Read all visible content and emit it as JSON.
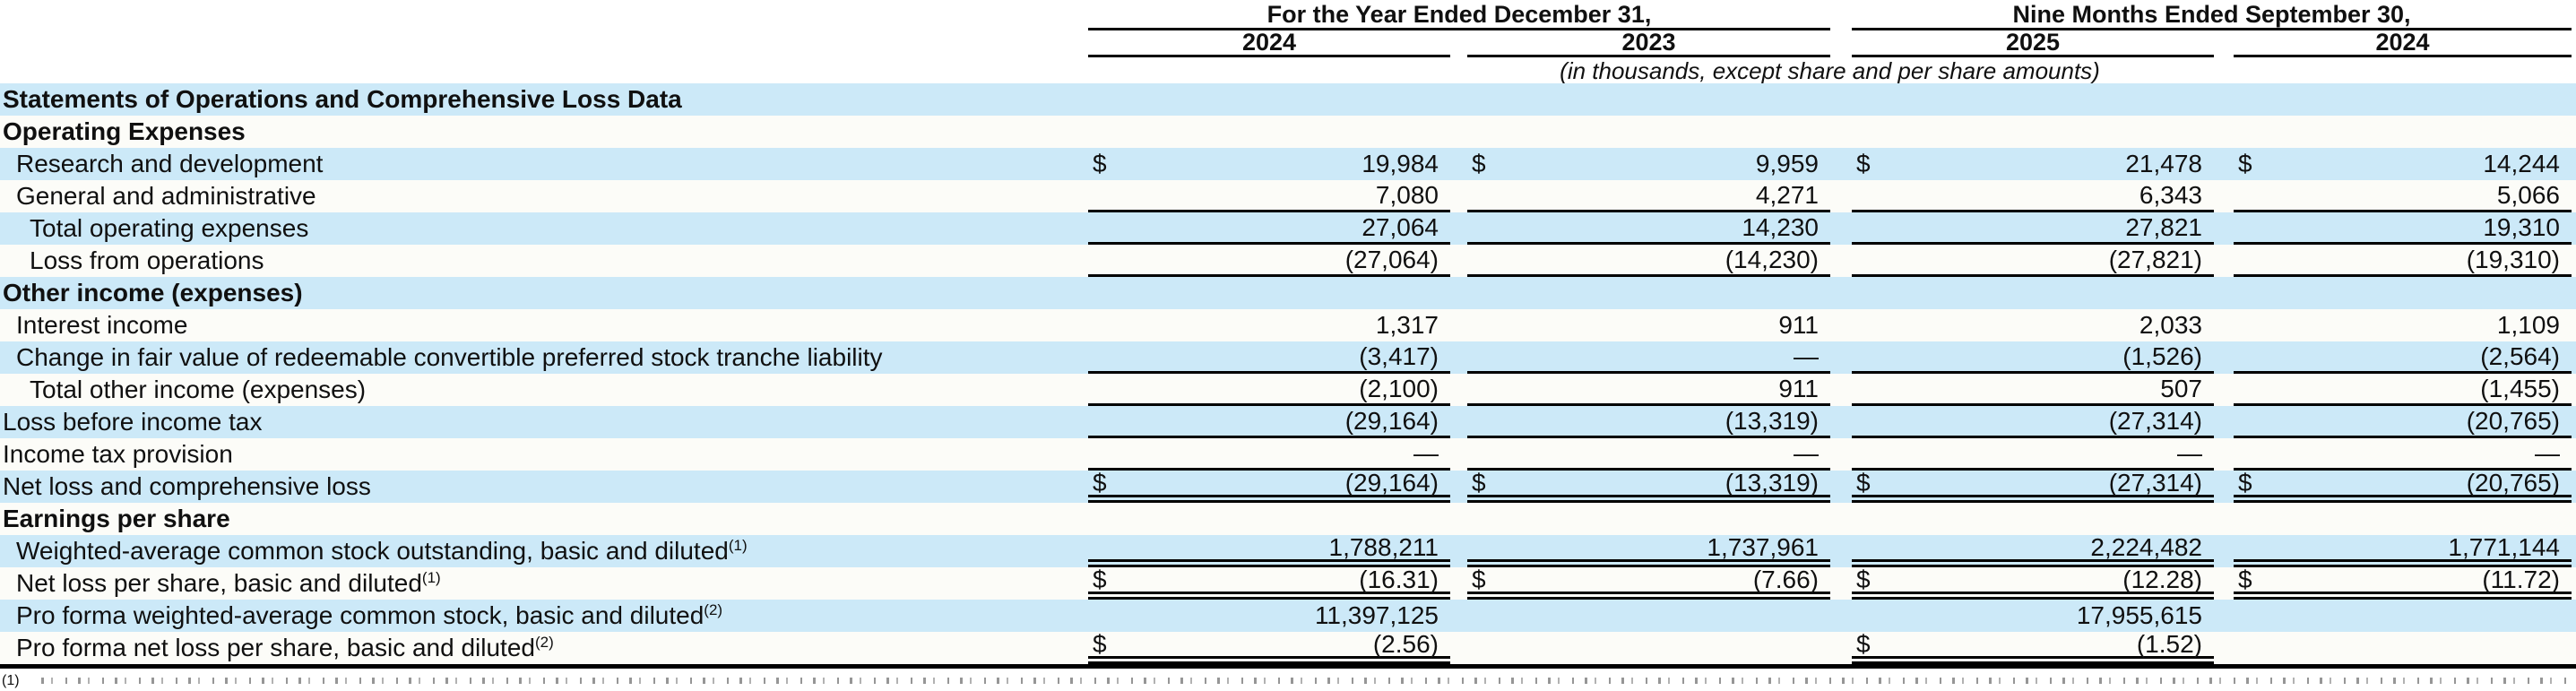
{
  "colors": {
    "row_highlight": "#cce9f8",
    "row_plain": "#fcfcf8",
    "rule": "#000000",
    "text": "#101010"
  },
  "table": {
    "col_groups": [
      {
        "title": "For the Year Ended December 31,",
        "years": [
          "2024",
          "2023"
        ]
      },
      {
        "title": "Nine Months Ended September 30,",
        "years": [
          "2025",
          "2024"
        ]
      }
    ],
    "units_note": "(in thousands, except share and per share amounts)",
    "rows": [
      {
        "label": "Statements of Operations and Comprehensive Loss Data",
        "style": "section",
        "indent": 0,
        "dollar": false,
        "underline": "none",
        "sup": "",
        "values": [
          "",
          "",
          "",
          ""
        ]
      },
      {
        "label": "Operating Expenses",
        "style": "section",
        "indent": 0,
        "dollar": false,
        "underline": "none",
        "sup": "",
        "values": [
          "",
          "",
          "",
          ""
        ]
      },
      {
        "label": "Research and development",
        "style": "item",
        "indent": 1,
        "dollar": true,
        "underline": "none",
        "sup": "",
        "values": [
          "19,984",
          "9,959",
          "21,478",
          "14,244"
        ]
      },
      {
        "label": "General and administrative",
        "style": "item",
        "indent": 1,
        "dollar": false,
        "underline": "single",
        "sup": "",
        "values": [
          "7,080",
          "4,271",
          "6,343",
          "5,066"
        ]
      },
      {
        "label": "Total operating expenses",
        "style": "item",
        "indent": 2,
        "dollar": false,
        "underline": "single",
        "sup": "",
        "values": [
          "27,064",
          "14,230",
          "27,821",
          "19,310"
        ]
      },
      {
        "label": "Loss from operations",
        "style": "item",
        "indent": 2,
        "dollar": false,
        "underline": "single",
        "sup": "",
        "values": [
          "(27,064)",
          "(14,230)",
          "(27,821)",
          "(19,310)"
        ]
      },
      {
        "label": "Other income (expenses)",
        "style": "section",
        "indent": 0,
        "dollar": false,
        "underline": "none",
        "sup": "",
        "values": [
          "",
          "",
          "",
          ""
        ]
      },
      {
        "label": "Interest income",
        "style": "item",
        "indent": 1,
        "dollar": false,
        "underline": "none",
        "sup": "",
        "values": [
          "1,317",
          "911",
          "2,033",
          "1,109"
        ]
      },
      {
        "label": "Change in fair value of redeemable convertible preferred stock tranche liability",
        "style": "item",
        "indent": 1,
        "dollar": false,
        "underline": "single",
        "sup": "",
        "values": [
          "(3,417)",
          "—",
          "(1,526)",
          "(2,564)"
        ]
      },
      {
        "label": "Total other income (expenses)",
        "style": "item",
        "indent": 2,
        "dollar": false,
        "underline": "single",
        "sup": "",
        "values": [
          "(2,100)",
          "911",
          "507",
          "(1,455)"
        ]
      },
      {
        "label": "Loss before income tax",
        "style": "item",
        "indent": 0,
        "dollar": false,
        "underline": "single",
        "sup": "",
        "values": [
          "(29,164)",
          "(13,319)",
          "(27,314)",
          "(20,765)"
        ]
      },
      {
        "label": "Income tax provision",
        "style": "item",
        "indent": 0,
        "dollar": false,
        "underline": "single",
        "sup": "",
        "values": [
          "—",
          "—",
          "—",
          "—"
        ]
      },
      {
        "label": "Net loss and comprehensive loss",
        "style": "item",
        "indent": 0,
        "dollar": true,
        "underline": "double",
        "sup": "",
        "values": [
          "(29,164)",
          "(13,319)",
          "(27,314)",
          "(20,765)"
        ]
      },
      {
        "label": "Earnings per share",
        "style": "section",
        "indent": 0,
        "dollar": false,
        "underline": "none",
        "sup": "",
        "values": [
          "",
          "",
          "",
          ""
        ]
      },
      {
        "label": "Weighted-average common stock outstanding, basic and diluted",
        "style": "item",
        "indent": 1,
        "dollar": false,
        "underline": "double",
        "sup": "(1)",
        "values": [
          "1,788,211",
          "1,737,961",
          "2,224,482",
          "1,771,144"
        ]
      },
      {
        "label": "Net loss per share, basic and diluted",
        "style": "item",
        "indent": 1,
        "dollar": true,
        "underline": "double",
        "sup": "(1)",
        "values": [
          "(16.31)",
          "(7.66)",
          "(12.28)",
          "(11.72)"
        ]
      },
      {
        "label": "Pro forma weighted-average common stock, basic and diluted",
        "style": "item",
        "indent": 1,
        "dollar": false,
        "underline": "none",
        "sup": "(2)",
        "values": [
          "11,397,125",
          "",
          "17,955,615",
          ""
        ]
      },
      {
        "label": "Pro forma net loss per share, basic and diluted",
        "style": "item",
        "indent": 1,
        "dollar": true,
        "underline": "double",
        "sup": "(2)",
        "values": [
          "(2.56)",
          "",
          "(1.52)",
          ""
        ]
      }
    ],
    "footnote_marker": "(1)"
  }
}
